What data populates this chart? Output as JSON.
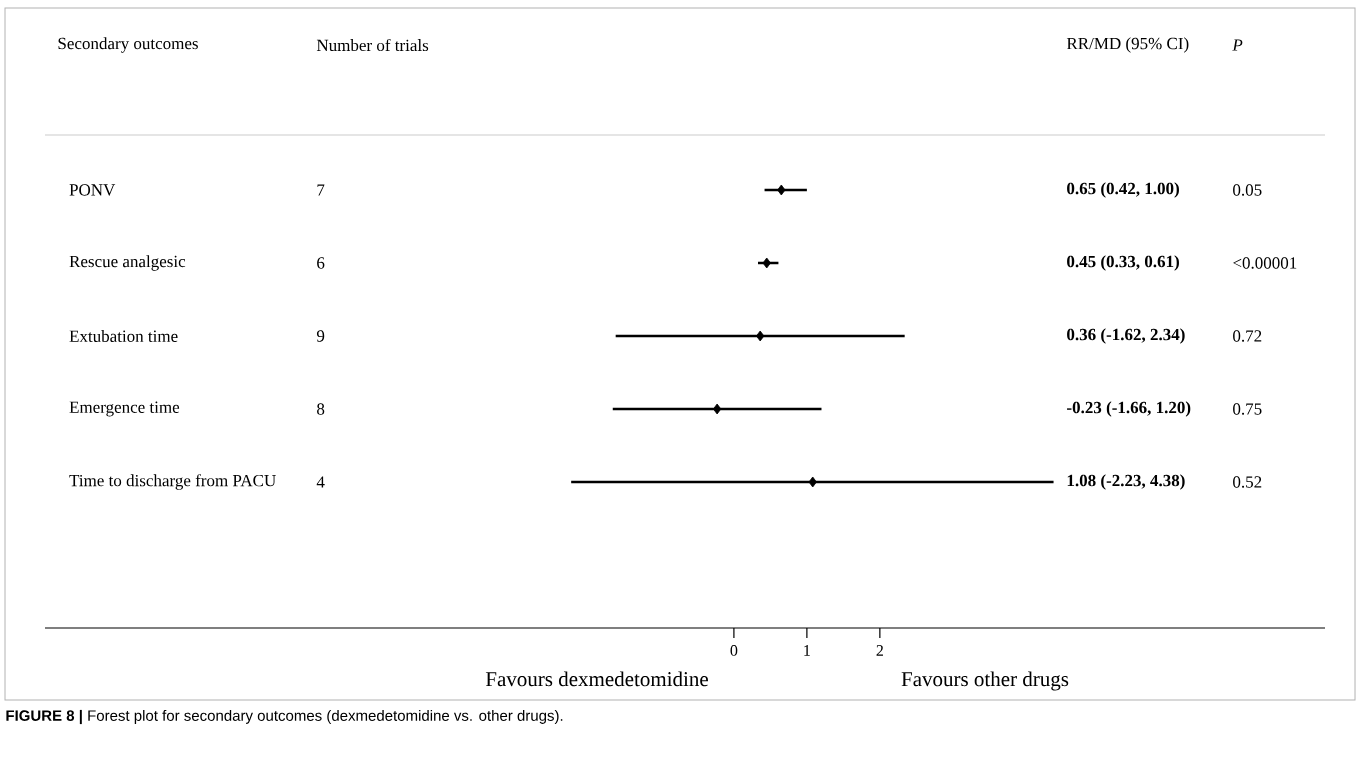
{
  "chart_data": {
    "type": "scatter",
    "orientation": "horizontal",
    "categories": [
      "PONV",
      "Rescue analgesic",
      "Extubation time",
      "Emergence time",
      "Time to discharge from PACU"
    ],
    "values": [
      0.65,
      0.45,
      0.36,
      -0.23,
      1.08
    ],
    "errors": [
      [
        0.42,
        1.0
      ],
      [
        0.33,
        0.61
      ],
      [
        -1.62,
        2.34
      ],
      [
        -1.66,
        1.2
      ],
      [
        -2.23,
        4.38
      ]
    ],
    "color": "#000000",
    "marker": "diamond",
    "xlim": [
      -9.44,
      8.1
    ],
    "xticks": [
      0,
      1,
      2
    ],
    "annotations": [
      "Secondary outcomes",
      "Number of trials",
      "RR/MD (95% CI)",
      "P",
      "7",
      "6",
      "9",
      "8",
      "4",
      "0.05",
      "<0.00001",
      "0.72",
      "0.75",
      "0.52",
      "Favours dexmedetomidine",
      "Favours other drugs",
      "**FIGURE 8 |** Forest plot for secondary outcomes (dexmedetomidine vs. other drugs).",
      "0.65 (0.42, 1.00)",
      "0.45 (0.33, 0.61)",
      "0.36 (-1.62, 2.34)",
      "-0.23 (-1.66, 1.20)",
      "1.08 (-2.23, 4.38)"
    ]
  }
}
